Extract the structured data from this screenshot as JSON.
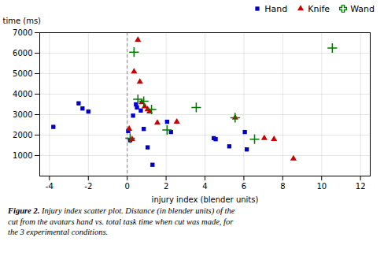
{
  "chart_data": {
    "type": "scatter",
    "xlabel": "injury index (blender units)",
    "ylabel": "time (ms)",
    "caption": {
      "label": "Figure 2.",
      "text": " Injury index scatter plot. Distance (in blender units) of the\ncut from the avatars hand vs. total task time when cut was made, for\nthe 3 experimental conditions."
    },
    "xlim": [
      -4.5,
      12.5
    ],
    "ylim": [
      0,
      7000
    ],
    "xticks": [
      -4,
      -2,
      0,
      2,
      4,
      6,
      8,
      10,
      12
    ],
    "yticks": [
      1000,
      2000,
      3000,
      4000,
      5000,
      6000,
      7000
    ],
    "grid": true,
    "legend": "upper right",
    "annotations": [
      {
        "type": "vline",
        "x": 0,
        "line_style": "dashed"
      }
    ],
    "series": [
      {
        "name": "Hand",
        "color": "#0000cc",
        "marker": "square",
        "x": [
          -3.8,
          -2.5,
          -2.3,
          -2.0,
          0.05,
          0.15,
          0.3,
          0.45,
          0.5,
          0.7,
          0.85,
          1.05,
          1.3,
          2.05,
          2.25,
          4.45,
          4.55,
          5.25,
          6.05,
          6.15
        ],
        "values": [
          2400,
          3550,
          3300,
          3150,
          2200,
          1750,
          2950,
          3500,
          3350,
          3200,
          2300,
          1400,
          550,
          2650,
          2150,
          1850,
          1800,
          1450,
          2150,
          1300
        ]
      },
      {
        "name": "Knife",
        "color": "#cc0000",
        "marker": "triangle",
        "x": [
          0.1,
          0.25,
          0.35,
          0.55,
          0.65,
          0.75,
          0.9,
          1.05,
          1.15,
          1.55,
          2.55,
          5.55,
          7.05,
          7.55,
          8.55
        ],
        "values": [
          2300,
          1800,
          5100,
          6650,
          4600,
          3600,
          3400,
          3250,
          3150,
          2600,
          2650,
          2850,
          1850,
          1800,
          850
        ]
      },
      {
        "name": "Wand",
        "color": "#007700",
        "marker": "plus",
        "x": [
          0.15,
          0.35,
          0.55,
          0.85,
          1.25,
          2.05,
          3.55,
          5.55,
          6.55,
          10.55
        ],
        "values": [
          1850,
          6050,
          3750,
          3650,
          3250,
          2250,
          3350,
          2850,
          1800,
          6250
        ]
      }
    ]
  }
}
